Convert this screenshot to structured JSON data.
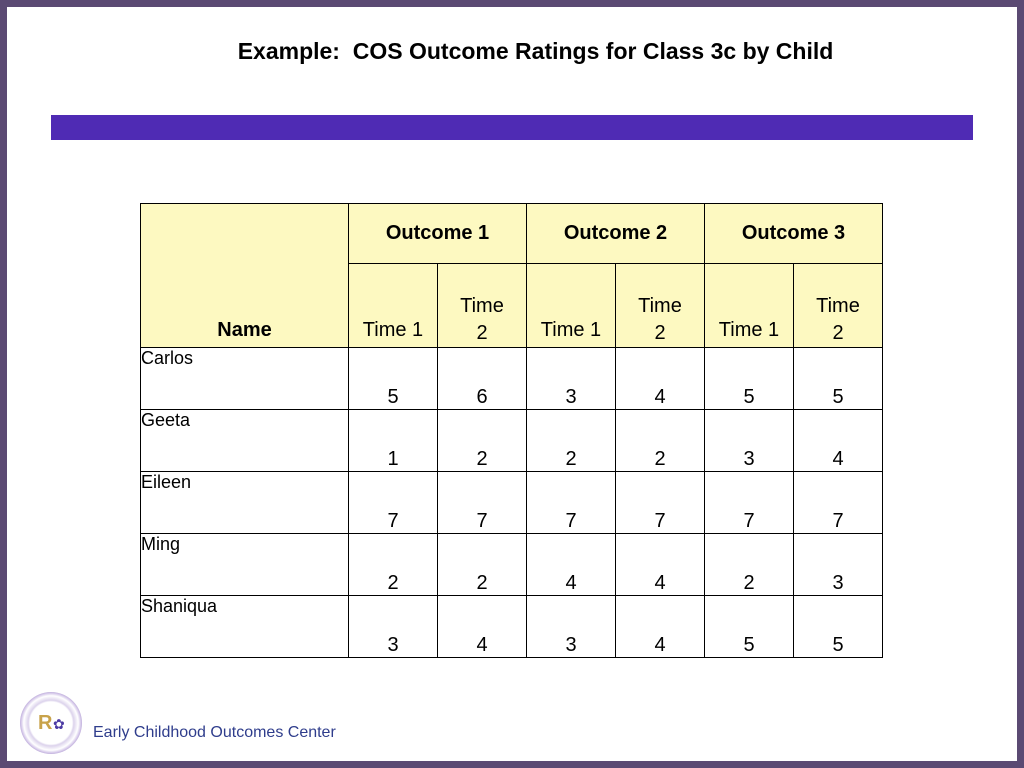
{
  "slide": {
    "title": "Example:  COS Outcome Ratings for Class 3c by Child",
    "accent_bar_color": "#4f2bb4",
    "header_fill_color": "#fdf9c1"
  },
  "table": {
    "name_header": "Name",
    "outcomes": [
      "Outcome 1",
      "Outcome 2",
      "Outcome 3"
    ],
    "time1_label": "Time 1",
    "time2_label": "Time 2",
    "rows": [
      {
        "name": "Carlos",
        "values": [
          "5",
          "6",
          "3",
          "4",
          "5",
          "5"
        ]
      },
      {
        "name": "Geeta",
        "values": [
          "1",
          "2",
          "2",
          "2",
          "3",
          "4"
        ]
      },
      {
        "name": "Eileen",
        "values": [
          "7",
          "7",
          "7",
          "7",
          "7",
          "7"
        ]
      },
      {
        "name": "Ming",
        "values": [
          "2",
          "2",
          "4",
          "4",
          "2",
          "3"
        ]
      },
      {
        "name": "Shaniqua",
        "values": [
          "3",
          "4",
          "3",
          "4",
          "5",
          "5"
        ]
      }
    ]
  },
  "footer": {
    "org_name": "Early Childhood Outcomes Center",
    "logo_text": "R",
    "logo_icon": "eco-logo-icon"
  }
}
